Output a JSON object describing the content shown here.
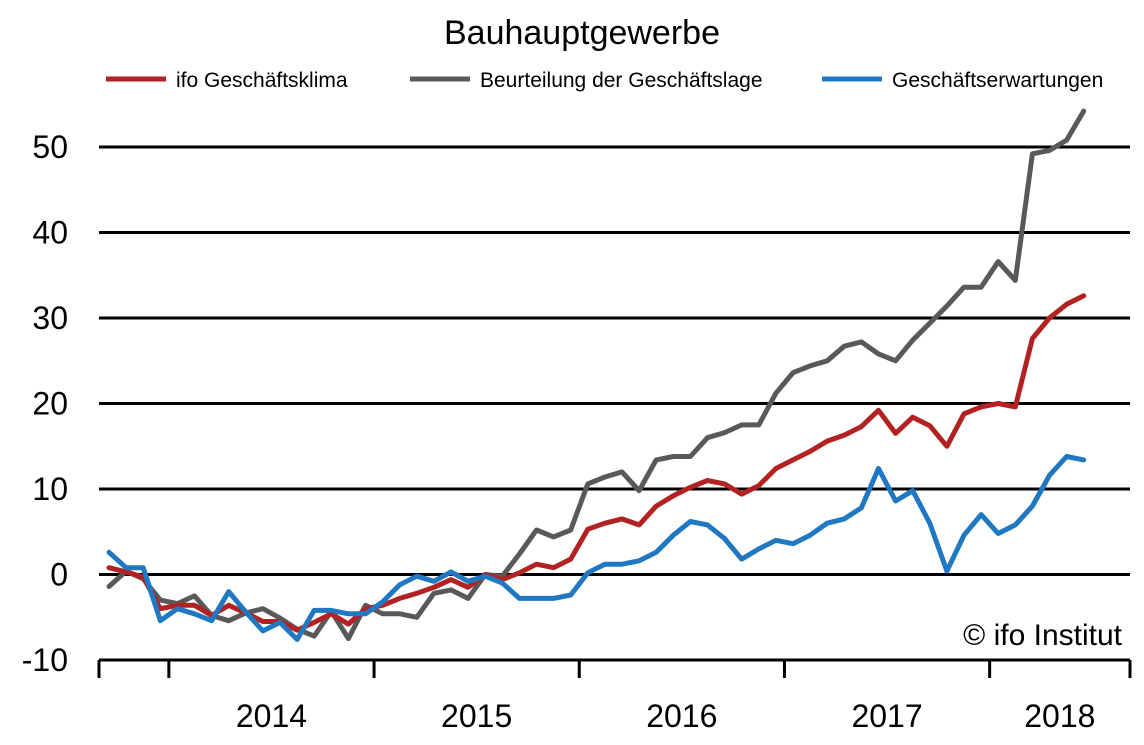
{
  "chart_data": {
    "type": "line",
    "title": "Bauhauptgewerbe",
    "xlabel": "",
    "ylabel": "",
    "ylim": [
      -10,
      50
    ],
    "yticks": [
      "50",
      "40",
      "30",
      "20",
      "10",
      "0",
      "-10"
    ],
    "ytick_values": [
      50,
      40,
      30,
      20,
      10,
      0,
      -10
    ],
    "x_period_labels": [
      "2014",
      "2015",
      "2016",
      "2017",
      "2018"
    ],
    "x_start": "2013-09",
    "grid": "horizontal",
    "legend_position": "top",
    "credit": "© ifo Institut",
    "series": [
      {
        "name": "ifo Geschäftsklima",
        "color": "#b22222",
        "values": [
          0.8,
          0.3,
          -0.3,
          -4.0,
          -3.6,
          -3.6,
          -4.8,
          -3.6,
          -4.5,
          -5.5,
          -5.5,
          -6.5,
          -5.6,
          -4.6,
          -5.8,
          -4.0,
          -3.6,
          -2.8,
          -2.2,
          -1.5,
          -0.6,
          -1.5,
          0.0,
          -0.6,
          0.2,
          1.2,
          0.8,
          1.8,
          5.3,
          6.0,
          6.5,
          5.8,
          8.0,
          9.2,
          10.2,
          11.0,
          10.6,
          9.4,
          10.4,
          12.4,
          13.4,
          14.4,
          15.6,
          16.3,
          17.3,
          19.2,
          16.5,
          18.4,
          17.4,
          15.0,
          18.8,
          19.6,
          20.0,
          19.6,
          27.6,
          30.0,
          31.6,
          32.6
        ]
      },
      {
        "name": "Beurteilung der Geschäftslage",
        "color": "#595959",
        "values": [
          -1.4,
          0.4,
          -0.5,
          -3.0,
          -3.4,
          -2.5,
          -4.8,
          -5.4,
          -4.5,
          -4.0,
          -5.1,
          -6.4,
          -7.2,
          -4.3,
          -7.5,
          -3.6,
          -4.6,
          -4.6,
          -5.0,
          -2.2,
          -1.8,
          -2.8,
          0.0,
          -0.2,
          2.4,
          5.2,
          4.4,
          5.2,
          10.6,
          11.4,
          12.0,
          9.8,
          13.4,
          13.8,
          13.8,
          16.0,
          16.6,
          17.5,
          17.5,
          21.2,
          23.6,
          24.4,
          25.0,
          26.7,
          27.2,
          25.8,
          25.0,
          27.4,
          29.4,
          31.4,
          33.6,
          33.6,
          36.6,
          34.4,
          49.2,
          49.6,
          50.8,
          54.2
        ]
      },
      {
        "name": "Geschäftserwartungen",
        "color": "#1f78c1",
        "values": [
          2.6,
          0.8,
          0.8,
          -5.4,
          -4.0,
          -4.6,
          -5.4,
          -2.0,
          -4.4,
          -6.6,
          -5.6,
          -7.6,
          -4.2,
          -4.2,
          -4.6,
          -4.6,
          -3.2,
          -1.2,
          -0.2,
          -0.8,
          0.3,
          -0.8,
          -0.2,
          -1.0,
          -2.8,
          -2.8,
          -2.8,
          -2.4,
          0.2,
          1.2,
          1.2,
          1.6,
          2.6,
          4.6,
          6.2,
          5.8,
          4.2,
          1.8,
          3.0,
          4.0,
          3.6,
          4.6,
          6.0,
          6.5,
          7.8,
          12.4,
          8.6,
          9.8,
          6.0,
          0.4,
          4.6,
          7.0,
          4.8,
          5.8,
          8.0,
          11.6,
          13.8,
          13.4
        ]
      }
    ]
  }
}
